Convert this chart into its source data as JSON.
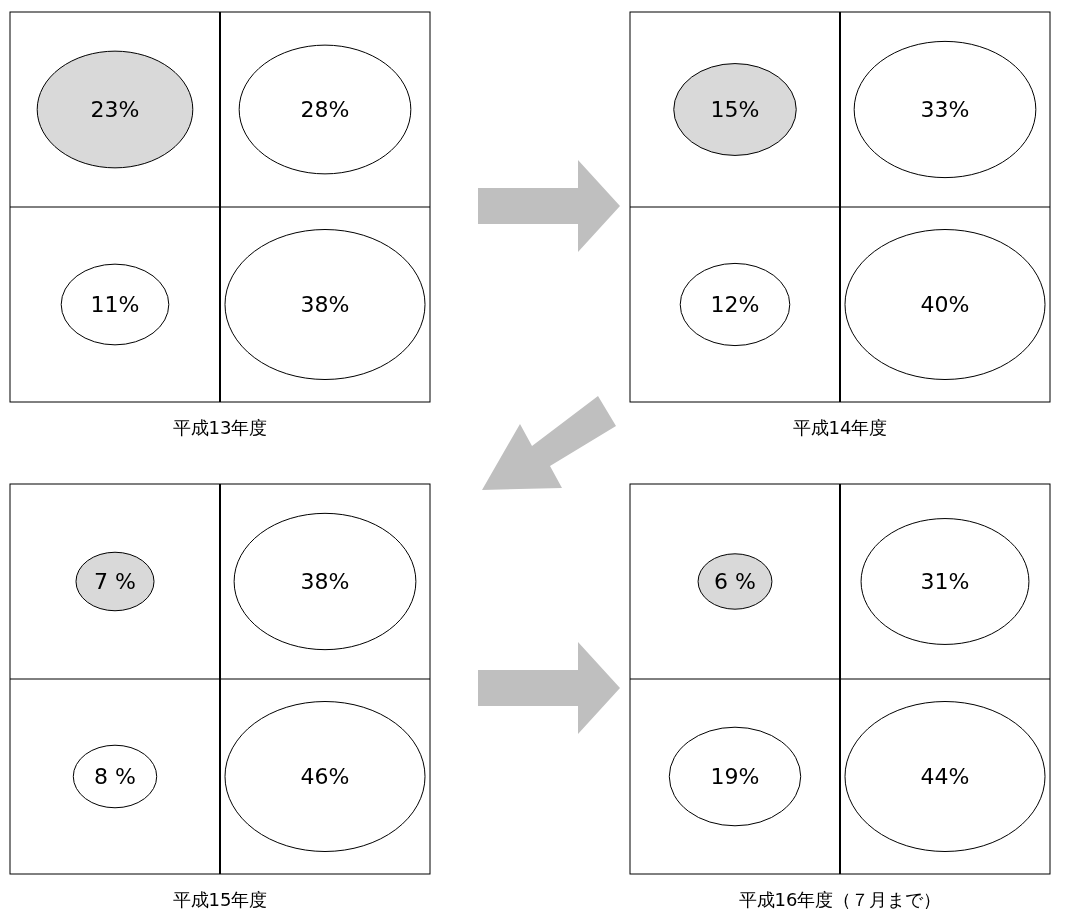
{
  "chart_data": [
    {
      "type": "other",
      "title": "平成13年度",
      "values": [
        23,
        28,
        11,
        38
      ],
      "value_labels": [
        "23%",
        "28%",
        "11%",
        "38%"
      ],
      "colors": [
        "#d9d9d9",
        "#ffffff",
        "#ffffff",
        "#ffffff"
      ]
    },
    {
      "type": "other",
      "title": "平成14年度",
      "values": [
        15,
        33,
        12,
        40
      ],
      "value_labels": [
        "15%",
        "33%",
        "12%",
        "40%"
      ],
      "colors": [
        "#d9d9d9",
        "#ffffff",
        "#ffffff",
        "#ffffff"
      ]
    },
    {
      "type": "other",
      "title": "平成15年度",
      "values": [
        7,
        38,
        8,
        46
      ],
      "value_labels": [
        "7 %",
        "38%",
        "8 %",
        "46%"
      ],
      "colors": [
        "#d9d9d9",
        "#ffffff",
        "#ffffff",
        "#ffffff"
      ]
    },
    {
      "type": "other",
      "title": "平成16年度（７月まで）",
      "values": [
        6,
        31,
        19,
        44
      ],
      "value_labels": [
        "6 %",
        "31%",
        "19%",
        "44%"
      ],
      "colors": [
        "#d9d9d9",
        "#ffffff",
        "#ffffff",
        "#ffffff"
      ]
    }
  ]
}
